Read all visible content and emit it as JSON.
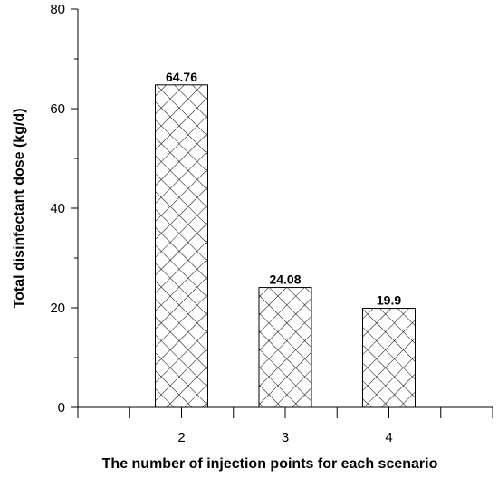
{
  "chart_data": {
    "type": "bar",
    "categories": [
      "2",
      "3",
      "4"
    ],
    "values": [
      64.76,
      24.08,
      19.9
    ],
    "data_labels": [
      "64.76",
      "24.08",
      "19.9"
    ],
    "xlabel": "The number of injection points for each scenario",
    "ylabel": "Total disinfectant dose (kg/d)",
    "ylim": [
      0,
      80
    ],
    "yticks": [
      "0",
      "20",
      "40",
      "60",
      "80"
    ],
    "grid": false,
    "bar_fill": "crosshatch",
    "colors": {
      "bar_stroke": "#000000",
      "hatch": "#000000",
      "background": "#ffffff"
    }
  }
}
